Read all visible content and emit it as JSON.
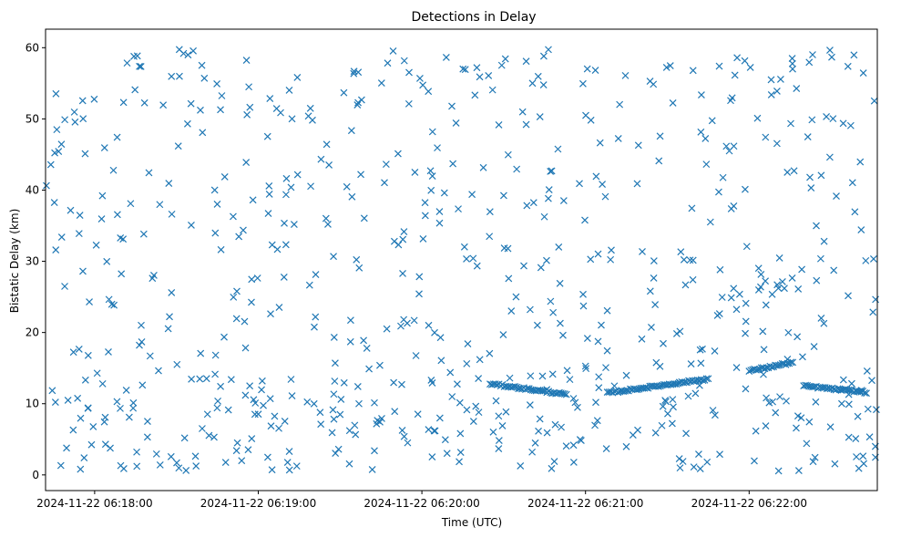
{
  "chart_data": {
    "type": "scatter",
    "title": "Detections in Delay",
    "xlabel": "Time (UTC)",
    "ylabel": "Bistatic Delay (km)",
    "marker": "x",
    "color": "#1f77b4",
    "grid": false,
    "x_start": "2024-11-22 06:17:40",
    "x_end": "2024-11-22 06:22:47",
    "xlim": [
      "2024-11-22 06:17:42",
      "2024-11-22 06:22:47"
    ],
    "ylim": [
      -2.2,
      62.6
    ],
    "x_ticks": [
      "2024-11-22 06:18:00",
      "2024-11-22 06:19:00",
      "2024-11-22 06:20:00",
      "2024-11-22 06:21:00",
      "2024-11-22 06:22:00"
    ],
    "y_ticks": [
      "0",
      "10",
      "20",
      "30",
      "40",
      "50",
      "60"
    ],
    "structured_tracks": [
      {
        "start": "2024-11-22 06:20:25",
        "end": "2024-11-22 06:20:53",
        "y_start": 12.8,
        "y_end": 11.3
      },
      {
        "start": "2024-11-22 06:21:08",
        "end": "2024-11-22 06:21:45",
        "y_start": 11.5,
        "y_end": 13.5
      },
      {
        "start": "2024-11-22 06:21:60",
        "end": "2024-11-22 06:22:16",
        "y_start": 14.6,
        "y_end": 15.8
      },
      {
        "start": "2024-11-22 06:22:20",
        "end": "2024-11-22 06:22:43",
        "y_start": 12.5,
        "y_end": 11.6
      }
    ],
    "scatter_points": 700,
    "y_range": [
      0.5,
      59.8
    ]
  }
}
